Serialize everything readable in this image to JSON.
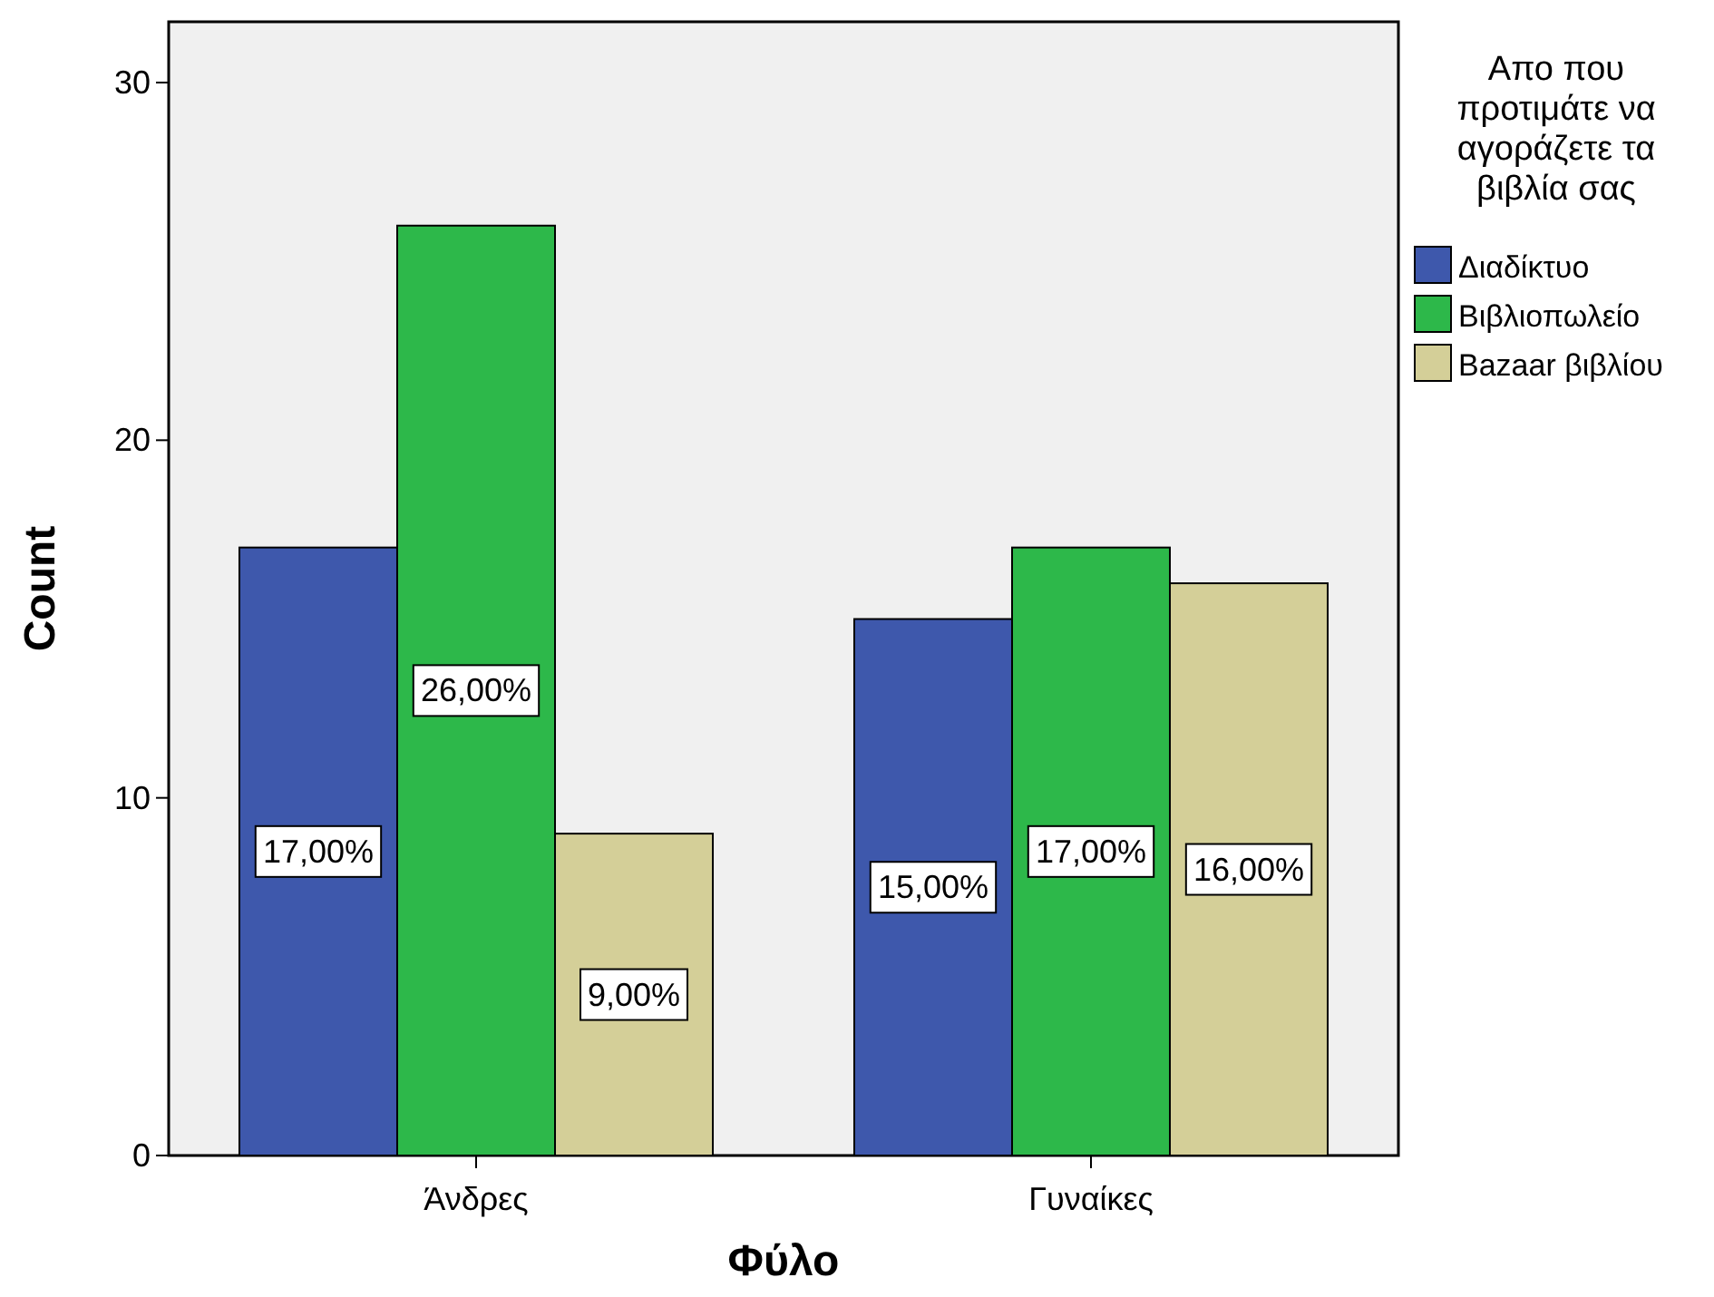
{
  "chart_data": {
    "type": "bar",
    "xlabel": "Φύλο",
    "ylabel": "Count",
    "legend_title": "Απο που προτιμάτε να αγοράζετε τα βιβλία σας",
    "categories": [
      "Άνδρες",
      "Γυναίκες"
    ],
    "series": [
      {
        "name": "Διαδίκτυο",
        "color": "#3e58ac",
        "values": [
          17,
          15
        ],
        "value_labels": [
          "17,00%",
          "15,00%"
        ]
      },
      {
        "name": "Βιβλιοπωλείο",
        "color": "#2db84a",
        "values": [
          26,
          17
        ],
        "value_labels": [
          "26,00%",
          "17,00%"
        ]
      },
      {
        "name": "Bazaar βιβλίου",
        "color": "#d4cf98",
        "values": [
          9,
          16
        ],
        "value_labels": [
          "9,00%",
          "16,00%"
        ]
      }
    ],
    "ylim": [
      0,
      31.7
    ],
    "yticks": [
      0,
      10,
      20,
      30
    ],
    "grid": false,
    "legend": "top right"
  }
}
